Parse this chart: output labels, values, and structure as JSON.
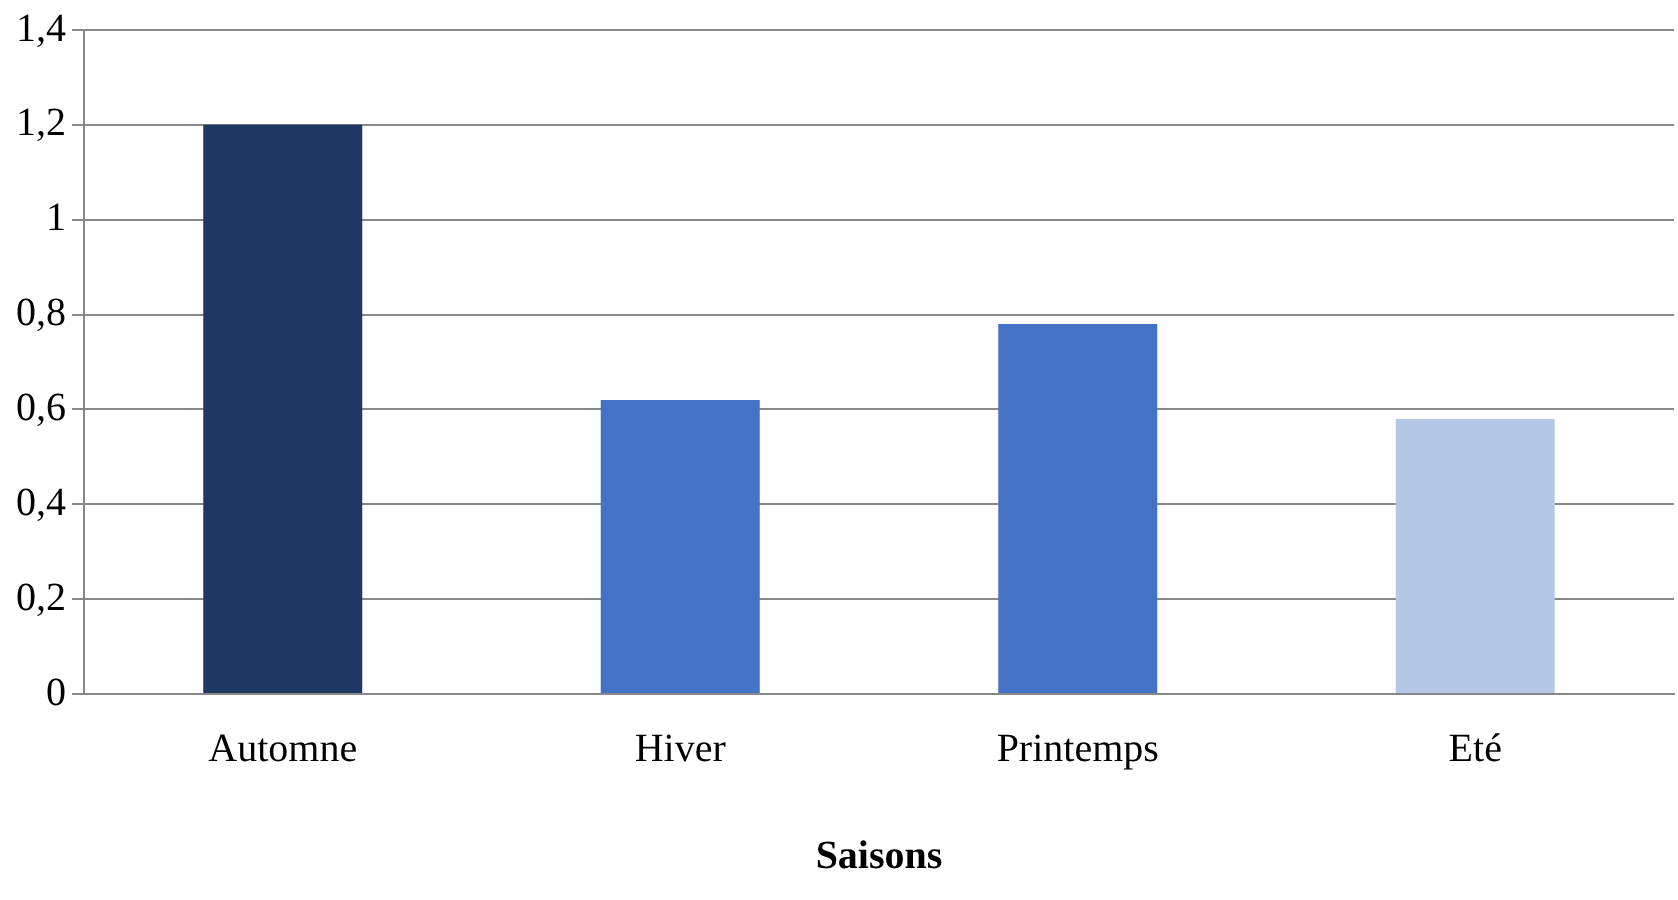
{
  "chart_data": {
    "type": "bar",
    "xlabel": "Saisons",
    "categories": [
      "Automne",
      "Hiver",
      "Printemps",
      "Eté"
    ],
    "values": [
      1.2,
      0.62,
      0.78,
      0.58
    ],
    "colors": [
      "#1f3864",
      "#4472c4",
      "#4472c4",
      "#b4c7e7"
    ],
    "ylim": [
      0,
      1.4
    ],
    "yticks": [
      0,
      {
        "value": 0.2,
        "label": "0,2"
      },
      {
        "value": 0.4,
        "label": "0,4"
      },
      {
        "value": 0.6,
        "label": "0,6"
      },
      {
        "value": 0.8,
        "label": "0,8"
      },
      1,
      {
        "value": 1.2,
        "label": "1,2"
      },
      {
        "value": 1.4,
        "label": "1,4"
      }
    ],
    "grid": "y",
    "legend": false
  }
}
